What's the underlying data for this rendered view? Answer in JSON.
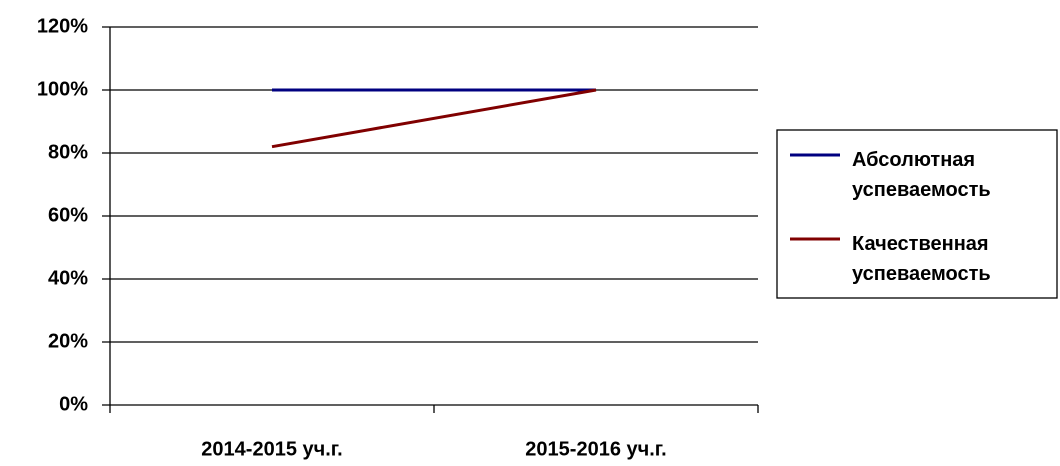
{
  "chart_data": {
    "type": "line",
    "categories": [
      "2014-2015 уч.г.",
      "2015-2016 уч.г."
    ],
    "series": [
      {
        "name": "Абсолютная успеваемость",
        "color": "#000080",
        "values": [
          100,
          100
        ]
      },
      {
        "name": "Качественная успеваемость",
        "color": "#800000",
        "values": [
          82,
          100
        ]
      }
    ],
    "ylim": [
      0,
      120
    ],
    "yticks": [
      {
        "value": 0,
        "label": "0%"
      },
      {
        "value": 20,
        "label": "20%"
      },
      {
        "value": 40,
        "label": "40%"
      },
      {
        "value": 60,
        "label": "60%"
      },
      {
        "value": 80,
        "label": "80%"
      },
      {
        "value": 100,
        "label": "100%"
      },
      {
        "value": 120,
        "label": "120%"
      }
    ],
    "grid": true,
    "legend": "right"
  }
}
